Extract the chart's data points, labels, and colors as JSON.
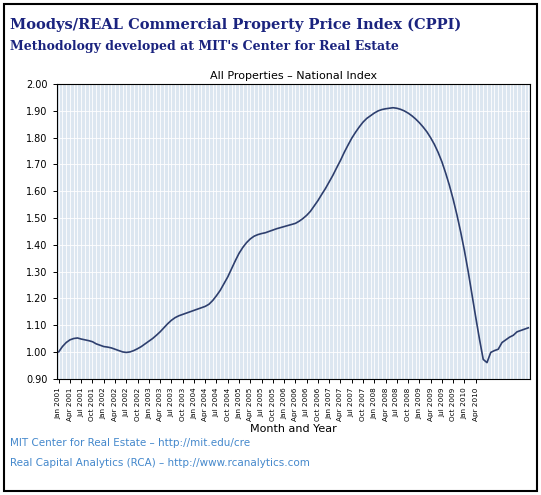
{
  "title1": "Moodys/REAL Commercial Property Price Index (CPPI)",
  "title2": "Methodology developed at MIT's Center for Real Estate",
  "chart_title": "All Properties – National Index",
  "xlabel": "Month and Year",
  "ylim": [
    0.9,
    2.0
  ],
  "yticks": [
    0.9,
    1.0,
    1.1,
    1.2,
    1.3,
    1.4,
    1.5,
    1.6,
    1.7,
    1.8,
    1.9,
    2.0
  ],
  "line_color": "#2e3f6e",
  "background_color": "#dce6f0",
  "outer_background": "#ffffff",
  "footer_line1": "MIT Center for Real Estate – http://mit.edu/cre",
  "footer_line2": "Real Capital Analytics (RCA) – http://www.rcanalytics.com",
  "footer_color": "#4488cc",
  "title1_color": "#1a237e",
  "title2_color": "#1a237e",
  "values": [
    1.0,
    1.02,
    1.035,
    1.045,
    1.05,
    1.052,
    1.048,
    1.045,
    1.042,
    1.038,
    1.03,
    1.025,
    1.02,
    1.018,
    1.015,
    1.01,
    1.005,
    1.0,
    0.998,
    1.0,
    1.005,
    1.012,
    1.02,
    1.03,
    1.04,
    1.05,
    1.062,
    1.075,
    1.09,
    1.105,
    1.118,
    1.128,
    1.135,
    1.14,
    1.145,
    1.15,
    1.155,
    1.16,
    1.165,
    1.17,
    1.178,
    1.192,
    1.21,
    1.23,
    1.255,
    1.28,
    1.31,
    1.34,
    1.368,
    1.39,
    1.408,
    1.422,
    1.432,
    1.438,
    1.442,
    1.445,
    1.45,
    1.455,
    1.46,
    1.464,
    1.468,
    1.472,
    1.476,
    1.48,
    1.488,
    1.498,
    1.51,
    1.525,
    1.545,
    1.565,
    1.588,
    1.61,
    1.635,
    1.66,
    1.688,
    1.715,
    1.745,
    1.772,
    1.798,
    1.82,
    1.84,
    1.858,
    1.872,
    1.882,
    1.892,
    1.9,
    1.905,
    1.908,
    1.91,
    1.912,
    1.91,
    1.906,
    1.9,
    1.892,
    1.882,
    1.87,
    1.856,
    1.84,
    1.822,
    1.8,
    1.775,
    1.745,
    1.71,
    1.668,
    1.622,
    1.57,
    1.512,
    1.448,
    1.378,
    1.3,
    1.215,
    1.13,
    1.048,
    0.972,
    0.96,
    0.998,
    1.005,
    1.01,
    1.035,
    1.045,
    1.055,
    1.062,
    1.075,
    1.08,
    1.085,
    1.09
  ],
  "tick_labels": [
    "Jan 2001",
    "Apr 2001",
    "Jul 2001",
    "Oct 2001",
    "Jan 2002",
    "Apr 2002",
    "Jul 2002",
    "Oct 2002",
    "Jan 2003",
    "Apr 2003",
    "Jul 2003",
    "Oct 2003",
    "Jan 2004",
    "Apr 2004",
    "Jul 2004",
    "Oct 2004",
    "Jan 2005",
    "Apr 2005",
    "Jul 2005",
    "Oct 2005",
    "Jan 2006",
    "Apr 2006",
    "Jul 2006",
    "Oct 2006",
    "Jan 2007",
    "Apr 2007",
    "Jul 2007",
    "Oct 2007",
    "Jan 2008",
    "Apr 2008",
    "Jul 2008",
    "Oct 2008",
    "Jan 2009",
    "Apr 2009",
    "Jul 2009",
    "Oct 2009",
    "Jan 2010",
    "Apr 2010"
  ]
}
